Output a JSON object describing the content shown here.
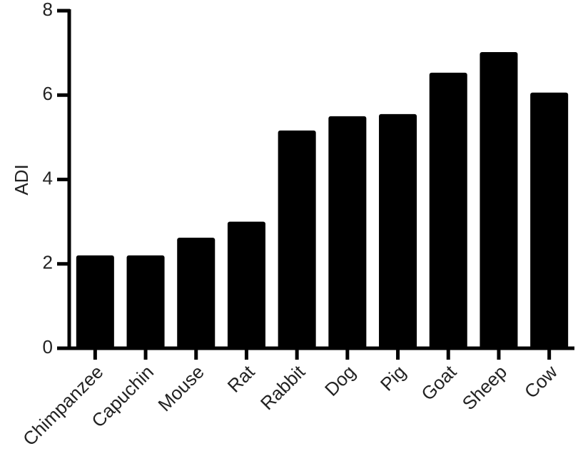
{
  "chart_data": {
    "type": "bar",
    "ylabel": "ADI",
    "categories": [
      "Chimpanzee",
      "Capuchin",
      "Mouse",
      "Rat",
      "Rabbit",
      "Dog",
      "Pig",
      "Goat",
      "Sheep",
      "Cow"
    ],
    "values": [
      2.2,
      2.2,
      2.62,
      3.0,
      5.16,
      5.5,
      5.55,
      6.53,
      7.02,
      6.06
    ],
    "color": "#000000",
    "ylim": [
      0,
      8
    ],
    "yticks": [
      0,
      2,
      4,
      6,
      8
    ],
    "grid": false
  }
}
